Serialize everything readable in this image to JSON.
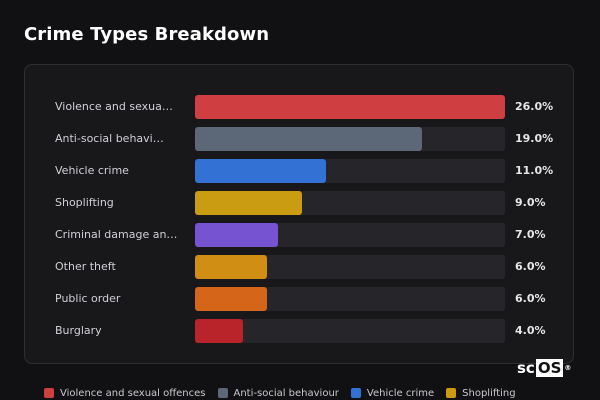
{
  "title": "Crime Types Breakdown",
  "watermark": {
    "prefix": "sc",
    "boxed": "OS",
    "mark": "®"
  },
  "colors": {
    "background": "#111114",
    "panel": "#18181b",
    "track": "#25252a"
  },
  "chart_data": {
    "type": "bar",
    "orientation": "horizontal",
    "title": "Crime Types Breakdown",
    "unit": "%",
    "xlim": [
      0,
      26
    ],
    "grid": false,
    "legend_position": "bottom",
    "categories": [
      "Violence and sexua…",
      "Anti-social behavi…",
      "Vehicle crime",
      "Shoplifting",
      "Criminal damage an…",
      "Other theft",
      "Public order",
      "Burglary"
    ],
    "values": [
      26.0,
      19.0,
      11.0,
      9.0,
      7.0,
      6.0,
      6.0,
      4.0
    ],
    "value_labels": [
      "26.0%",
      "19.0%",
      "11.0%",
      "9.0%",
      "7.0%",
      "6.0%",
      "6.0%",
      "4.0%"
    ],
    "bar_colors": [
      "#cf3e40",
      "#5c6878",
      "#3471d4",
      "#c99c12",
      "#7653d1",
      "#d08e14",
      "#d56619",
      "#b9232a"
    ],
    "legend": [
      {
        "label": "Violence and sexual offences",
        "color": "#cf3e40"
      },
      {
        "label": "Anti-social behaviour",
        "color": "#5c6878"
      },
      {
        "label": "Vehicle crime",
        "color": "#3471d4"
      },
      {
        "label": "Shoplifting",
        "color": "#c99c12"
      }
    ]
  }
}
